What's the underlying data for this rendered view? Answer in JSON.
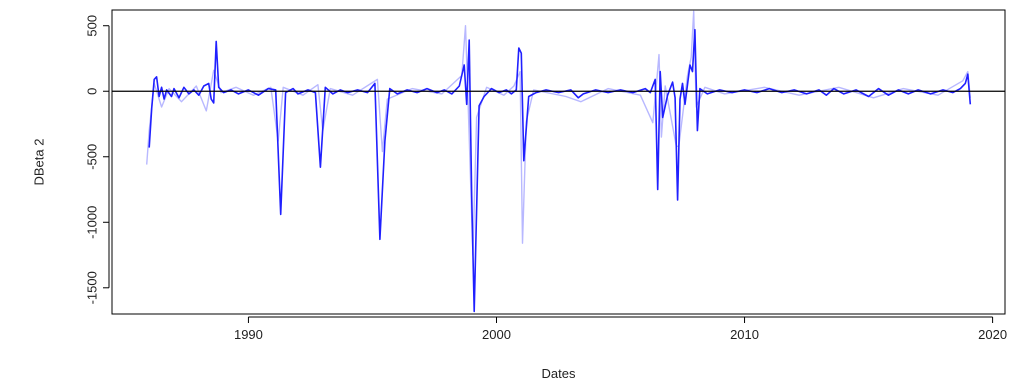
{
  "chart_data": {
    "type": "line",
    "title": "",
    "xlabel": "Dates",
    "ylabel": "DBeta 2",
    "xlim": [
      1984.5,
      2020.5
    ],
    "ylim": [
      -1700,
      620
    ],
    "xticks": [
      1990,
      2000,
      2010,
      2020
    ],
    "yticks": [
      500,
      0,
      -500,
      -1000,
      -1500
    ],
    "hline": 0,
    "grid": false,
    "legend": "none",
    "colors": {
      "primary": "#2020ff",
      "secondary": "#b8b8ff",
      "zero_line": "#000000",
      "frame": "#000000"
    },
    "series": [
      {
        "color_key": "primary",
        "points": [
          [
            1986.0,
            -430
          ],
          [
            1986.1,
            -130
          ],
          [
            1986.2,
            90
          ],
          [
            1986.3,
            110
          ],
          [
            1986.4,
            -40
          ],
          [
            1986.5,
            30
          ],
          [
            1986.6,
            -60
          ],
          [
            1986.7,
            10
          ],
          [
            1986.9,
            -40
          ],
          [
            1987.0,
            20
          ],
          [
            1987.2,
            -50
          ],
          [
            1987.4,
            30
          ],
          [
            1987.6,
            -20
          ],
          [
            1987.8,
            10
          ],
          [
            1988.0,
            -30
          ],
          [
            1988.2,
            40
          ],
          [
            1988.4,
            60
          ],
          [
            1988.5,
            -60
          ],
          [
            1988.6,
            -90
          ],
          [
            1988.7,
            380
          ],
          [
            1988.8,
            30
          ],
          [
            1989.0,
            -10
          ],
          [
            1989.3,
            10
          ],
          [
            1989.6,
            -20
          ],
          [
            1990.0,
            10
          ],
          [
            1990.4,
            -30
          ],
          [
            1990.8,
            20
          ],
          [
            1991.1,
            10
          ],
          [
            1991.3,
            -940
          ],
          [
            1991.5,
            -10
          ],
          [
            1991.8,
            20
          ],
          [
            1992.0,
            -20
          ],
          [
            1992.4,
            10
          ],
          [
            1992.7,
            -10
          ],
          [
            1992.9,
            -580
          ],
          [
            1993.1,
            30
          ],
          [
            1993.4,
            -20
          ],
          [
            1993.7,
            10
          ],
          [
            1994.0,
            -10
          ],
          [
            1994.4,
            10
          ],
          [
            1994.8,
            -10
          ],
          [
            1995.1,
            60
          ],
          [
            1995.3,
            -1130
          ],
          [
            1995.5,
            -380
          ],
          [
            1995.7,
            20
          ],
          [
            1996.0,
            -20
          ],
          [
            1996.4,
            10
          ],
          [
            1996.8,
            -10
          ],
          [
            1997.2,
            20
          ],
          [
            1997.6,
            -10
          ],
          [
            1997.9,
            10
          ],
          [
            1998.2,
            -20
          ],
          [
            1998.5,
            40
          ],
          [
            1998.7,
            200
          ],
          [
            1998.8,
            -100
          ],
          [
            1998.9,
            390
          ],
          [
            1999.0,
            -800
          ],
          [
            1999.1,
            -1680
          ],
          [
            1999.3,
            -110
          ],
          [
            1999.5,
            -40
          ],
          [
            1999.8,
            20
          ],
          [
            2000.1,
            -10
          ],
          [
            2000.4,
            10
          ],
          [
            2000.6,
            -20
          ],
          [
            2000.8,
            10
          ],
          [
            2000.9,
            330
          ],
          [
            2001.0,
            290
          ],
          [
            2001.1,
            -530
          ],
          [
            2001.3,
            -40
          ],
          [
            2001.6,
            -10
          ],
          [
            2002.0,
            10
          ],
          [
            2002.5,
            -10
          ],
          [
            2003.0,
            10
          ],
          [
            2003.3,
            -50
          ],
          [
            2003.5,
            -20
          ],
          [
            2004.0,
            10
          ],
          [
            2004.5,
            -10
          ],
          [
            2005.0,
            10
          ],
          [
            2005.5,
            -10
          ],
          [
            2006.0,
            20
          ],
          [
            2006.2,
            -10
          ],
          [
            2006.4,
            90
          ],
          [
            2006.5,
            -750
          ],
          [
            2006.6,
            150
          ],
          [
            2006.7,
            -200
          ],
          [
            2006.9,
            -30
          ],
          [
            2007.1,
            70
          ],
          [
            2007.2,
            -50
          ],
          [
            2007.3,
            -830
          ],
          [
            2007.4,
            -60
          ],
          [
            2007.5,
            60
          ],
          [
            2007.6,
            -100
          ],
          [
            2007.8,
            200
          ],
          [
            2007.9,
            150
          ],
          [
            2008.0,
            470
          ],
          [
            2008.1,
            -300
          ],
          [
            2008.2,
            20
          ],
          [
            2008.5,
            -20
          ],
          [
            2009.0,
            10
          ],
          [
            2009.5,
            -10
          ],
          [
            2010.0,
            10
          ],
          [
            2010.5,
            -10
          ],
          [
            2011.0,
            20
          ],
          [
            2011.5,
            -10
          ],
          [
            2012.0,
            10
          ],
          [
            2012.5,
            -20
          ],
          [
            2013.0,
            10
          ],
          [
            2013.3,
            -30
          ],
          [
            2013.6,
            20
          ],
          [
            2014.0,
            -20
          ],
          [
            2014.5,
            10
          ],
          [
            2015.0,
            -40
          ],
          [
            2015.4,
            20
          ],
          [
            2015.8,
            -30
          ],
          [
            2016.2,
            10
          ],
          [
            2016.6,
            -20
          ],
          [
            2017.0,
            10
          ],
          [
            2017.5,
            -20
          ],
          [
            2018.0,
            10
          ],
          [
            2018.4,
            -10
          ],
          [
            2018.7,
            20
          ],
          [
            2018.9,
            60
          ],
          [
            2019.0,
            130
          ],
          [
            2019.1,
            -100
          ]
        ]
      },
      {
        "color_key": "secondary",
        "points": [
          [
            1985.9,
            -560
          ],
          [
            1986.0,
            -300
          ],
          [
            1986.2,
            60
          ],
          [
            1986.5,
            -120
          ],
          [
            1986.8,
            20
          ],
          [
            1987.3,
            -80
          ],
          [
            1987.9,
            40
          ],
          [
            1988.3,
            -150
          ],
          [
            1988.6,
            160
          ],
          [
            1988.9,
            -10
          ],
          [
            1989.5,
            30
          ],
          [
            1990.2,
            -30
          ],
          [
            1990.9,
            30
          ],
          [
            1991.2,
            -380
          ],
          [
            1991.4,
            30
          ],
          [
            1992.2,
            -30
          ],
          [
            1992.8,
            50
          ],
          [
            1993.0,
            -300
          ],
          [
            1993.3,
            20
          ],
          [
            1994.2,
            -30
          ],
          [
            1995.2,
            90
          ],
          [
            1995.4,
            -460
          ],
          [
            1995.6,
            -60
          ],
          [
            1996.6,
            20
          ],
          [
            1997.8,
            -20
          ],
          [
            1998.6,
            120
          ],
          [
            1998.75,
            500
          ],
          [
            1998.85,
            -60
          ],
          [
            1999.05,
            -1250
          ],
          [
            1999.2,
            -200
          ],
          [
            1999.6,
            30
          ],
          [
            2000.3,
            -30
          ],
          [
            2000.7,
            40
          ],
          [
            2000.95,
            150
          ],
          [
            2001.05,
            -1160
          ],
          [
            2001.2,
            -230
          ],
          [
            2001.5,
            10
          ],
          [
            2002.8,
            -40
          ],
          [
            2003.4,
            -80
          ],
          [
            2004.5,
            20
          ],
          [
            2005.8,
            -30
          ],
          [
            2006.3,
            -240
          ],
          [
            2006.45,
            60
          ],
          [
            2006.55,
            280
          ],
          [
            2006.65,
            -350
          ],
          [
            2006.8,
            40
          ],
          [
            2007.25,
            -420
          ],
          [
            2007.35,
            -420
          ],
          [
            2007.7,
            120
          ],
          [
            2007.85,
            260
          ],
          [
            2007.95,
            610
          ],
          [
            2008.05,
            -120
          ],
          [
            2008.4,
            30
          ],
          [
            2009.2,
            -20
          ],
          [
            2010.8,
            30
          ],
          [
            2012.2,
            -30
          ],
          [
            2013.8,
            30
          ],
          [
            2015.2,
            -50
          ],
          [
            2016.4,
            20
          ],
          [
            2017.8,
            -30
          ],
          [
            2018.8,
            80
          ],
          [
            2019.0,
            150
          ],
          [
            2019.1,
            -50
          ]
        ]
      }
    ]
  }
}
